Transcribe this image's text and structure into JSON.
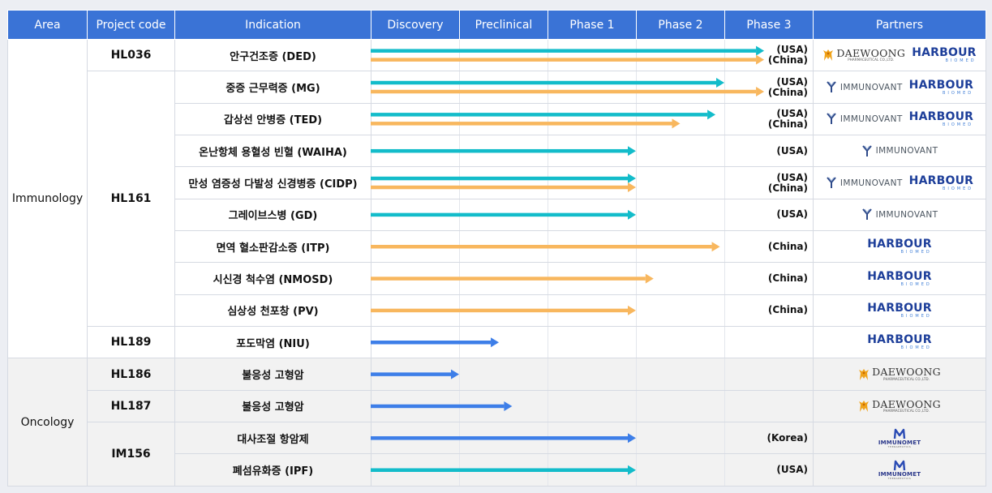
{
  "colors": {
    "header": "#3a73d6",
    "cyan": "#13bcca",
    "orange": "#f8b75e",
    "blue": "#3d7ee8"
  },
  "headers": [
    "Area",
    "Project code",
    "Indication",
    "Discovery",
    "Preclinical",
    "Phase 1",
    "Phase 2",
    "Phase 3",
    "Partners"
  ],
  "areas": {
    "immunology": "Immunology",
    "oncology": "Oncology"
  },
  "codes": {
    "hl036": "HL036",
    "hl161": "HL161",
    "hl189": "HL189",
    "hl186": "HL186",
    "hl187": "HL187",
    "im156": "IM156"
  },
  "partner_logos": {
    "daewoong": {
      "name": "DAEWOONG",
      "sub": "PHARMACEUTICAL CO.,LTD."
    },
    "harbour": {
      "name": "HARBOUR",
      "sub": "BIOMED"
    },
    "immunovant": {
      "name": "IMMUNOVANT"
    },
    "immunomet": {
      "name": "IMMUNOMET",
      "sub": "THERAPEUTICS"
    }
  },
  "rows": [
    {
      "indication": "안구건조증 (DED)",
      "regions": [
        "(USA)",
        "(China)"
      ],
      "bars": [
        {
          "color": "cyan",
          "progress": 4.45
        },
        {
          "color": "orange",
          "progress": 4.45
        }
      ],
      "partners": [
        "daewoong",
        "harbour"
      ]
    },
    {
      "indication": "중증 근무력증 (MG)",
      "regions": [
        "(USA)",
        "(China)"
      ],
      "bars": [
        {
          "color": "cyan",
          "progress": 4.0
        },
        {
          "color": "orange",
          "progress": 4.45
        }
      ],
      "partners": [
        "immunovant",
        "harbour"
      ]
    },
    {
      "indication": "갑상선 안병증 (TED)",
      "regions": [
        "(USA)",
        "(China)"
      ],
      "bars": [
        {
          "color": "cyan",
          "progress": 3.9
        },
        {
          "color": "orange",
          "progress": 3.5
        }
      ],
      "partners": [
        "immunovant",
        "harbour"
      ]
    },
    {
      "indication": "온난항체 용혈성 빈혈 (WAIHA)",
      "regions": [
        "(USA)"
      ],
      "bars": [
        {
          "color": "cyan",
          "progress": 3.0
        }
      ],
      "partners": [
        "immunovant"
      ]
    },
    {
      "indication": "만성 염증성 다발성 신경병증 (CIDP)",
      "regions": [
        "(USA)",
        "(China)"
      ],
      "bars": [
        {
          "color": "cyan",
          "progress": 3.0
        },
        {
          "color": "orange",
          "progress": 3.0
        }
      ],
      "partners": [
        "immunovant",
        "harbour"
      ]
    },
    {
      "indication": "그레이브스병 (GD)",
      "regions": [
        "(USA)"
      ],
      "bars": [
        {
          "color": "cyan",
          "progress": 3.0
        }
      ],
      "partners": [
        "immunovant"
      ]
    },
    {
      "indication": "면역 혈소판감소증 (ITP)",
      "regions": [
        "(China)"
      ],
      "bars": [
        {
          "color": "orange",
          "progress": 3.95
        }
      ],
      "partners": [
        "harbour"
      ]
    },
    {
      "indication": "시신경 척수염 (NMOSD)",
      "regions": [
        "(China)"
      ],
      "bars": [
        {
          "color": "orange",
          "progress": 3.2
        }
      ],
      "partners": [
        "harbour"
      ]
    },
    {
      "indication": "심상성 천포창 (PV)",
      "regions": [
        "(China)"
      ],
      "bars": [
        {
          "color": "orange",
          "progress": 3.0
        }
      ],
      "partners": [
        "harbour"
      ]
    },
    {
      "indication": "포도막염 (NIU)",
      "regions": [],
      "bars": [
        {
          "color": "blue",
          "progress": 1.45
        }
      ],
      "partners": [
        "harbour"
      ]
    },
    {
      "indication": "불응성 고형암",
      "regions": [],
      "bars": [
        {
          "color": "blue",
          "progress": 1.0
        }
      ],
      "partners": [
        "daewoong"
      ]
    },
    {
      "indication": "불응성 고형암",
      "regions": [],
      "bars": [
        {
          "color": "blue",
          "progress": 1.6
        }
      ],
      "partners": [
        "daewoong"
      ]
    },
    {
      "indication": "대사조절 항암제",
      "regions": [
        "(Korea)"
      ],
      "bars": [
        {
          "color": "blue",
          "progress": 3.0
        }
      ],
      "partners": [
        "immunomet"
      ]
    },
    {
      "indication": "폐섬유화증 (IPF)",
      "regions": [
        "(USA)"
      ],
      "bars": [
        {
          "color": "cyan",
          "progress": 3.0
        }
      ],
      "partners": [
        "immunomet"
      ]
    }
  ]
}
